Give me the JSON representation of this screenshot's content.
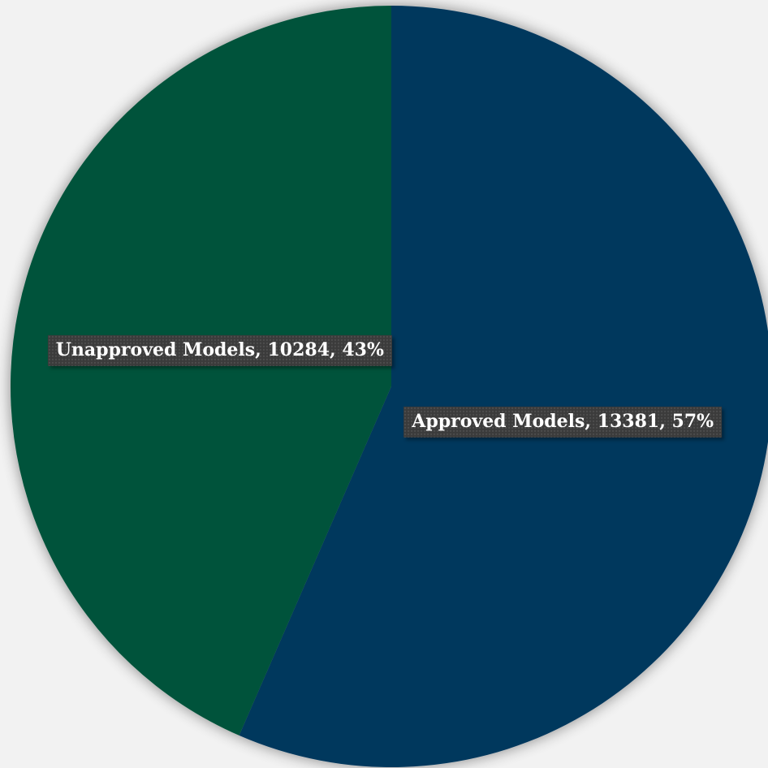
{
  "chart_data": {
    "type": "pie",
    "title": "",
    "start_angle_deg": 0,
    "direction": "clockwise",
    "slices": [
      {
        "name": "Approved Models",
        "value": 13381,
        "percent": "57%",
        "color": "#04375d",
        "label": "Approved Models, 13381, 57%"
      },
      {
        "name": "Unapproved Models",
        "value": 10284,
        "percent": "43%",
        "color": "#02533a",
        "label": "Unapproved Models, 10284, 43%"
      }
    ],
    "legend": "none"
  }
}
